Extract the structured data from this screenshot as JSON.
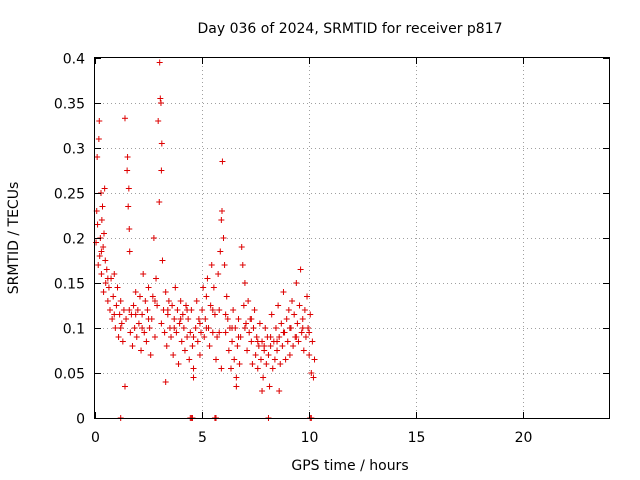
{
  "chart_data": {
    "type": "scatter",
    "title": "Day 036 of 2024, SRMTID for receiver p817",
    "xlabel": "GPS time / hours",
    "ylabel": "SRMTID / TECUs",
    "xlim": [
      0,
      24
    ],
    "ylim": [
      0,
      0.4
    ],
    "x_ticks": [
      0,
      5,
      10,
      15,
      20
    ],
    "x_tick_labels": [
      "0",
      "5",
      "10",
      "15",
      "20"
    ],
    "y_ticks": [
      0,
      0.05,
      0.1,
      0.15,
      0.2,
      0.25,
      0.3,
      0.35,
      0.4
    ],
    "y_tick_labels": [
      "0",
      "0.05",
      "0.1",
      "0.15",
      "0.2",
      "0.25",
      "0.3",
      "0.35",
      "0.4"
    ],
    "grid": true,
    "marker": "+",
    "series_color": "#dd0000",
    "series": [
      {
        "name": "SRMTID",
        "points": [
          [
            0.05,
            0.195
          ],
          [
            0.08,
            0.23
          ],
          [
            0.1,
            0.29
          ],
          [
            0.12,
            0.215
          ],
          [
            0.15,
            0.17
          ],
          [
            0.18,
            0.31
          ],
          [
            0.2,
            0.33
          ],
          [
            0.22,
            0.18
          ],
          [
            0.25,
            0.2
          ],
          [
            0.28,
            0.25
          ],
          [
            0.3,
            0.16
          ],
          [
            0.32,
            0.22
          ],
          [
            0.35,
            0.235
          ],
          [
            0.38,
            0.19
          ],
          [
            0.4,
            0.14
          ],
          [
            0.42,
            0.205
          ],
          [
            0.45,
            0.255
          ],
          [
            0.48,
            0.175
          ],
          [
            0.5,
            0.15
          ],
          [
            0.55,
            0.165
          ],
          [
            0.6,
            0.13
          ],
          [
            0.65,
            0.145
          ],
          [
            0.7,
            0.12
          ],
          [
            0.75,
            0.155
          ],
          [
            0.8,
            0.11
          ],
          [
            0.85,
            0.135
          ],
          [
            0.9,
            0.16
          ],
          [
            0.95,
            0.1
          ],
          [
            1.0,
            0.125
          ],
          [
            1.05,
            0.145
          ],
          [
            1.1,
            0.09
          ],
          [
            1.15,
            0.115
          ],
          [
            1.2,
            0.13
          ],
          [
            1.25,
            0.105
          ],
          [
            1.3,
            0.085
          ],
          [
            1.35,
            0.12
          ],
          [
            1.4,
            0.333
          ],
          [
            1.45,
            0.11
          ],
          [
            1.5,
            0.275
          ],
          [
            1.52,
            0.29
          ],
          [
            1.55,
            0.235
          ],
          [
            1.58,
            0.255
          ],
          [
            1.6,
            0.21
          ],
          [
            1.62,
            0.185
          ],
          [
            1.65,
            0.095
          ],
          [
            1.7,
            0.115
          ],
          [
            1.75,
            0.08
          ],
          [
            1.8,
            0.125
          ],
          [
            1.85,
            0.1
          ],
          [
            1.9,
            0.14
          ],
          [
            1.95,
            0.09
          ],
          [
            2.0,
            0.12
          ],
          [
            2.05,
            0.105
          ],
          [
            2.1,
            0.135
          ],
          [
            2.15,
            0.075
          ],
          [
            2.2,
            0.115
          ],
          [
            2.25,
            0.16
          ],
          [
            2.3,
            0.095
          ],
          [
            2.35,
            0.13
          ],
          [
            2.4,
            0.085
          ],
          [
            2.45,
            0.12
          ],
          [
            2.5,
            0.145
          ],
          [
            2.55,
            0.1
          ],
          [
            2.6,
            0.07
          ],
          [
            2.65,
            0.11
          ],
          [
            2.7,
            0.135
          ],
          [
            2.75,
            0.2
          ],
          [
            2.8,
            0.09
          ],
          [
            2.85,
            0.155
          ],
          [
            2.9,
            0.125
          ],
          [
            2.95,
            0.33
          ],
          [
            3.0,
            0.24
          ],
          [
            3.02,
            0.395
          ],
          [
            3.05,
            0.355
          ],
          [
            3.08,
            0.35
          ],
          [
            3.1,
            0.275
          ],
          [
            3.12,
            0.305
          ],
          [
            3.15,
            0.175
          ],
          [
            3.2,
            0.12
          ],
          [
            3.25,
            0.095
          ],
          [
            3.3,
            0.14
          ],
          [
            3.35,
            0.08
          ],
          [
            3.4,
            0.115
          ],
          [
            3.45,
            0.13
          ],
          [
            3.5,
            0.1
          ],
          [
            3.55,
            0.09
          ],
          [
            3.6,
            0.125
          ],
          [
            3.65,
            0.07
          ],
          [
            3.7,
            0.11
          ],
          [
            3.75,
            0.145
          ],
          [
            3.8,
            0.095
          ],
          [
            3.85,
            0.12
          ],
          [
            3.9,
            0.06
          ],
          [
            3.95,
            0.105
          ],
          [
            4.0,
            0.13
          ],
          [
            4.05,
            0.085
          ],
          [
            4.1,
            0.115
          ],
          [
            4.15,
            0.1
          ],
          [
            4.2,
            0.075
          ],
          [
            4.25,
            0.125
          ],
          [
            4.3,
            0.09
          ],
          [
            4.35,
            0.11
          ],
          [
            4.4,
            0.065
          ],
          [
            4.45,
            0.095
          ],
          [
            4.5,
            0.12
          ],
          [
            4.55,
            0.08
          ],
          [
            4.6,
            0.055
          ],
          [
            4.7,
            0.1
          ],
          [
            4.75,
            0.13
          ],
          [
            4.8,
            0.085
          ],
          [
            4.85,
            0.11
          ],
          [
            4.9,
            0.07
          ],
          [
            4.95,
            0.095
          ],
          [
            5.0,
            0.12
          ],
          [
            5.05,
            0.145
          ],
          [
            5.1,
            0.09
          ],
          [
            5.15,
            0.11
          ],
          [
            5.2,
            0.135
          ],
          [
            5.25,
            0.155
          ],
          [
            5.3,
            0.1
          ],
          [
            5.35,
            0.08
          ],
          [
            5.4,
            0.125
          ],
          [
            5.45,
            0.17
          ],
          [
            5.5,
            0.095
          ],
          [
            5.55,
            0.145
          ],
          [
            5.6,
            0.115
          ],
          [
            5.65,
            0.065
          ],
          [
            5.7,
            0.09
          ],
          [
            5.75,
            0.16
          ],
          [
            5.8,
            0.12
          ],
          [
            5.85,
            0.185
          ],
          [
            5.9,
            0.22
          ],
          [
            5.93,
            0.23
          ],
          [
            5.95,
            0.285
          ],
          [
            6.0,
            0.2
          ],
          [
            6.05,
            0.17
          ],
          [
            6.1,
            0.095
          ],
          [
            6.15,
            0.135
          ],
          [
            6.2,
            0.11
          ],
          [
            6.25,
            0.075
          ],
          [
            6.3,
            0.1
          ],
          [
            6.35,
            0.055
          ],
          [
            6.4,
            0.085
          ],
          [
            6.45,
            0.12
          ],
          [
            6.5,
            0.065
          ],
          [
            6.55,
            0.1
          ],
          [
            6.6,
            0.045
          ],
          [
            6.65,
            0.08
          ],
          [
            6.7,
            0.11
          ],
          [
            6.75,
            0.06
          ],
          [
            6.8,
            0.09
          ],
          [
            6.85,
            0.19
          ],
          [
            6.9,
            0.17
          ],
          [
            6.95,
            0.125
          ],
          [
            7.0,
            0.15
          ],
          [
            7.05,
            0.105
          ],
          [
            7.1,
            0.075
          ],
          [
            7.15,
            0.13
          ],
          [
            7.2,
            0.095
          ],
          [
            7.25,
            0.11
          ],
          [
            7.3,
            0.085
          ],
          [
            7.35,
            0.06
          ],
          [
            7.4,
            0.1
          ],
          [
            7.45,
            0.12
          ],
          [
            7.5,
            0.07
          ],
          [
            7.55,
            0.09
          ],
          [
            7.6,
            0.055
          ],
          [
            7.65,
            0.08
          ],
          [
            7.7,
            0.105
          ],
          [
            7.75,
            0.065
          ],
          [
            7.8,
            0.085
          ],
          [
            7.85,
            0.045
          ],
          [
            7.9,
            0.075
          ],
          [
            7.95,
            0.1
          ],
          [
            8.0,
            0.06
          ],
          [
            8.05,
            0.09
          ],
          [
            8.1,
            0.07
          ],
          [
            8.15,
            0.035
          ],
          [
            8.2,
            0.08
          ],
          [
            8.25,
            0.115
          ],
          [
            8.3,
            0.055
          ],
          [
            8.35,
            0.085
          ],
          [
            8.4,
            0.065
          ],
          [
            8.45,
            0.1
          ],
          [
            8.5,
            0.075
          ],
          [
            8.55,
            0.125
          ],
          [
            8.6,
            0.09
          ],
          [
            8.65,
            0.06
          ],
          [
            8.7,
            0.105
          ],
          [
            8.75,
            0.08
          ],
          [
            8.8,
            0.14
          ],
          [
            8.85,
            0.095
          ],
          [
            8.9,
            0.065
          ],
          [
            8.95,
            0.11
          ],
          [
            9.0,
            0.085
          ],
          [
            9.05,
            0.12
          ],
          [
            9.1,
            0.07
          ],
          [
            9.15,
            0.1
          ],
          [
            9.2,
            0.13
          ],
          [
            9.25,
            0.08
          ],
          [
            9.3,
            0.115
          ],
          [
            9.35,
            0.09
          ],
          [
            9.4,
            0.15
          ],
          [
            9.45,
            0.105
          ],
          [
            9.5,
            0.085
          ],
          [
            9.55,
            0.125
          ],
          [
            9.6,
            0.165
          ],
          [
            9.65,
            0.095
          ],
          [
            9.7,
            0.11
          ],
          [
            9.75,
            0.075
          ],
          [
            9.8,
            0.12
          ],
          [
            9.85,
            0.09
          ],
          [
            9.9,
            0.135
          ],
          [
            9.95,
            0.1
          ],
          [
            10.0,
            0.07
          ],
          [
            10.05,
            0.115
          ],
          [
            10.1,
            0.05
          ],
          [
            10.15,
            0.085
          ],
          [
            10.2,
            0.045
          ],
          [
            10.25,
            0.065
          ],
          [
            0.3,
            0.185
          ],
          [
            0.6,
            0.155
          ],
          [
            0.9,
            0.115
          ],
          [
            1.2,
            0.1
          ],
          [
            1.6,
            0.12
          ],
          [
            1.9,
            0.115
          ],
          [
            2.2,
            0.1
          ],
          [
            2.5,
            0.11
          ],
          [
            2.8,
            0.13
          ],
          [
            3.1,
            0.105
          ],
          [
            3.4,
            0.12
          ],
          [
            3.7,
            0.1
          ],
          [
            4.0,
            0.11
          ],
          [
            4.3,
            0.12
          ],
          [
            4.6,
            0.09
          ],
          [
            4.9,
            0.105
          ],
          [
            5.2,
            0.1
          ],
          [
            5.5,
            0.12
          ],
          [
            5.8,
            0.095
          ],
          [
            6.1,
            0.115
          ],
          [
            6.4,
            0.1
          ],
          [
            6.7,
            0.09
          ],
          [
            7.0,
            0.1
          ],
          [
            7.3,
            0.11
          ],
          [
            7.6,
            0.085
          ],
          [
            7.9,
            0.08
          ],
          [
            8.2,
            0.09
          ],
          [
            8.5,
            0.085
          ],
          [
            8.8,
            0.095
          ],
          [
            9.1,
            0.1
          ],
          [
            9.4,
            0.09
          ],
          [
            9.7,
            0.1
          ],
          [
            10.0,
            0.095
          ],
          [
            1.4,
            0.035
          ],
          [
            3.3,
            0.04
          ],
          [
            6.6,
            0.035
          ],
          [
            7.8,
            0.03
          ],
          [
            8.6,
            0.03
          ],
          [
            4.6,
            0.045
          ],
          [
            5.9,
            0.055
          ],
          [
            1.2,
            0.0
          ],
          [
            4.45,
            0.0
          ],
          [
            4.5,
            0.0
          ],
          [
            4.55,
            0.0
          ],
          [
            5.6,
            0.0
          ],
          [
            5.65,
            0.0
          ],
          [
            8.1,
            0.0
          ],
          [
            10.05,
            0.0
          ],
          [
            10.1,
            0.0
          ]
        ]
      }
    ]
  }
}
